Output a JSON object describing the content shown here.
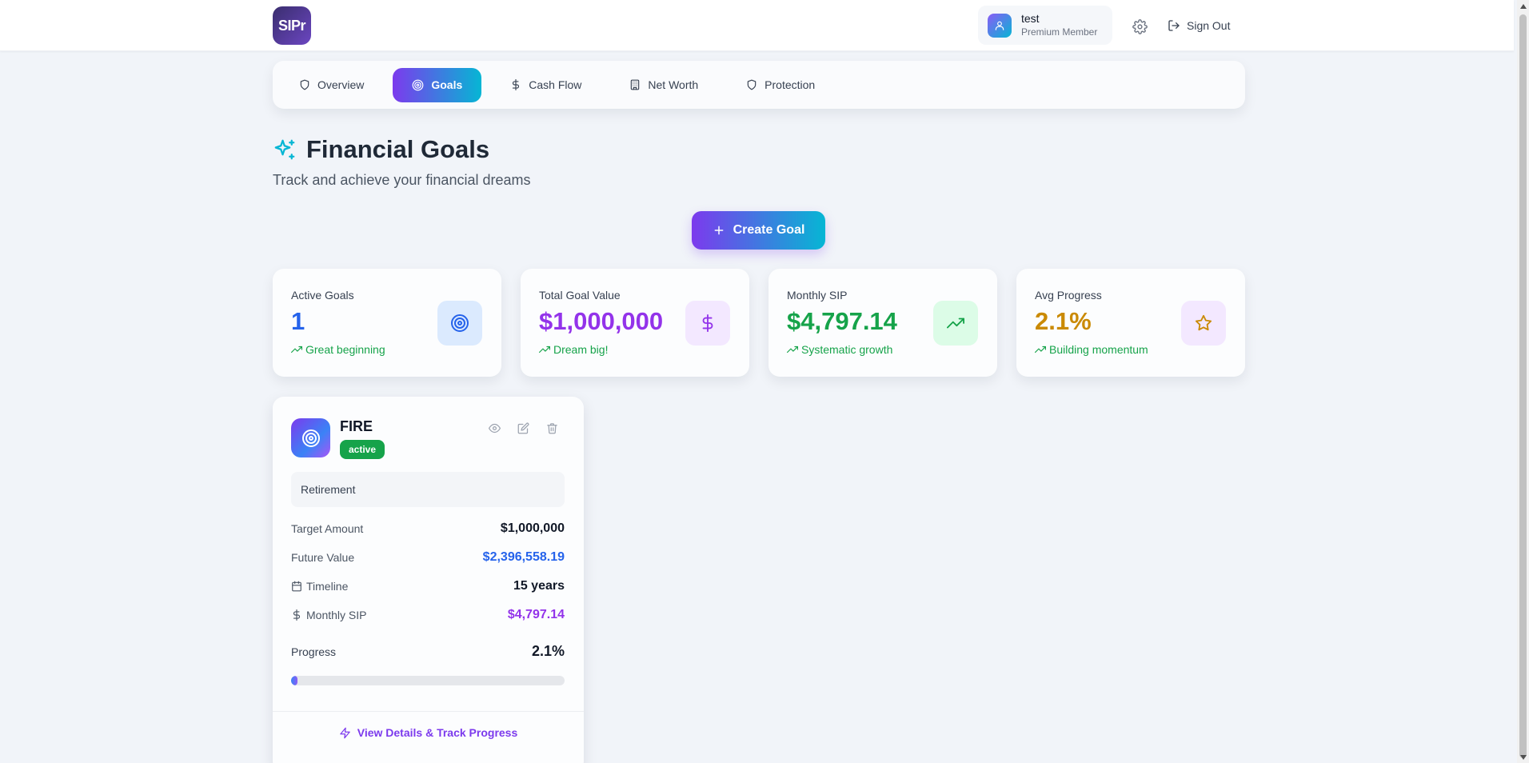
{
  "header": {
    "logo_text": "SIPr",
    "user_name": "test",
    "user_role": "Premium Member",
    "signout_label": "Sign Out"
  },
  "tabs": [
    {
      "label": "Overview",
      "icon": "shield-icon",
      "active": false
    },
    {
      "label": "Goals",
      "icon": "target-icon",
      "active": true
    },
    {
      "label": "Cash Flow",
      "icon": "dollar-icon",
      "active": false
    },
    {
      "label": "Net Worth",
      "icon": "building-icon",
      "active": false
    },
    {
      "label": "Protection",
      "icon": "shield-icon",
      "active": false
    }
  ],
  "page": {
    "title": "Financial Goals",
    "subtitle": "Track and achieve your financial dreams",
    "create_label": "Create Goal"
  },
  "stats": [
    {
      "label": "Active Goals",
      "value": "1",
      "hint": "Great beginning",
      "value_color": "#2563eb",
      "icon": "target-icon",
      "icon_bg": "#dbeafe",
      "icon_color": "#2563eb"
    },
    {
      "label": "Total Goal Value",
      "value": "$1,000,000",
      "hint": "Dream big!",
      "value_color": "#9333ea",
      "icon": "dollar-icon",
      "icon_bg": "#f3e8ff",
      "icon_color": "#9333ea"
    },
    {
      "label": "Monthly SIP",
      "value": "$4,797.14",
      "hint": "Systematic growth",
      "value_color": "#16a34a",
      "icon": "trending-up-icon",
      "icon_bg": "#dcfce7",
      "icon_color": "#16a34a"
    },
    {
      "label": "Avg Progress",
      "value": "2.1%",
      "hint": "Building momentum",
      "value_color": "#ca8a04",
      "icon": "star-icon",
      "icon_bg": "#f3e8ff",
      "icon_color": "#ca8a04"
    }
  ],
  "goal": {
    "name": "FIRE",
    "status": "active",
    "category": "Retirement",
    "target_label": "Target Amount",
    "target_value": "$1,000,000",
    "future_label": "Future Value",
    "future_value": "$2,396,558.19",
    "timeline_label": "Timeline",
    "timeline_value": "15 years",
    "sip_label": "Monthly SIP",
    "sip_value": "$4,797.14",
    "progress_label": "Progress",
    "progress_value": "2.1%",
    "progress_fraction": 0.021,
    "details_label": "View Details & Track Progress"
  },
  "colors": {
    "accent_start": "#7c3aed",
    "accent_end": "#06b6d4",
    "future_value": "#2563eb",
    "sip_value": "#9333ea"
  }
}
